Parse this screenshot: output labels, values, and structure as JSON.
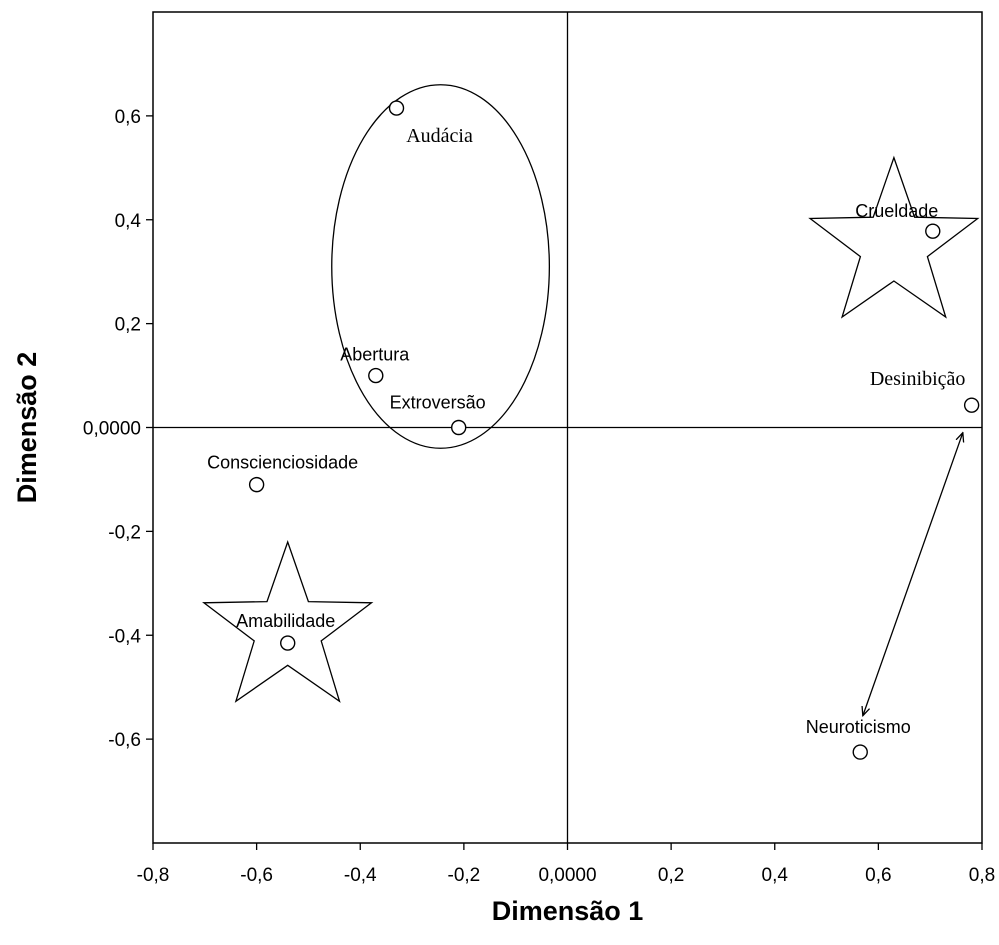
{
  "chart_data": {
    "type": "scatter",
    "xlabel": "Dimensão 1",
    "ylabel": "Dimensão 2",
    "xlim": [
      -0.8,
      0.8
    ],
    "ylim": [
      -0.8,
      0.8
    ],
    "x_ticks": [
      {
        "value": -0.8,
        "label": "-0,8"
      },
      {
        "value": -0.6,
        "label": "-0,6"
      },
      {
        "value": -0.4,
        "label": "-0,4"
      },
      {
        "value": -0.2,
        "label": "-0,2"
      },
      {
        "value": 0.0,
        "label": "0,0000"
      },
      {
        "value": 0.2,
        "label": "0,2"
      },
      {
        "value": 0.4,
        "label": "0,4"
      },
      {
        "value": 0.6,
        "label": "0,6"
      },
      {
        "value": 0.8,
        "label": "0,8"
      }
    ],
    "y_ticks": [
      {
        "value": 0.6,
        "label": "0,6"
      },
      {
        "value": 0.4,
        "label": "0,4"
      },
      {
        "value": 0.2,
        "label": "0,2"
      },
      {
        "value": 0.0,
        "label": "0,0000"
      },
      {
        "value": -0.2,
        "label": "-0,2"
      },
      {
        "value": -0.4,
        "label": "-0,4"
      },
      {
        "value": -0.6,
        "label": "-0,6"
      }
    ],
    "grid": false,
    "reference_lines": {
      "x": 0,
      "y": 0
    },
    "points": [
      {
        "id": "audacia",
        "label": "Audácia",
        "x": -0.33,
        "y": 0.615,
        "font": "serif"
      },
      {
        "id": "abertura",
        "label": "Abertura",
        "x": -0.37,
        "y": 0.1,
        "font": "sans"
      },
      {
        "id": "extroversao",
        "label": "Extroversão",
        "x": -0.21,
        "y": 0.0,
        "font": "sans"
      },
      {
        "id": "conscienciosidade",
        "label": "Conscienciosidade",
        "x": -0.6,
        "y": -0.11,
        "font": "sans"
      },
      {
        "id": "amabilidade",
        "label": "Amabilidade",
        "x": -0.54,
        "y": -0.415,
        "font": "sans"
      },
      {
        "id": "crueldade",
        "label": "Crueldade",
        "x": 0.705,
        "y": 0.378,
        "font": "sans"
      },
      {
        "id": "desinibicao",
        "label": "Desinibição",
        "x": 0.78,
        "y": 0.043,
        "font": "serif"
      },
      {
        "id": "neuroticismo",
        "label": "Neuroticismo",
        "x": 0.565,
        "y": -0.625,
        "font": "sans"
      }
    ],
    "annotations": {
      "ellipse": {
        "cx": -0.245,
        "cy": 0.31,
        "rx": 0.21,
        "ry": 0.35
      },
      "stars": [
        {
          "cx": 0.63,
          "cy": 0.35,
          "outer_r": 0.17
        },
        {
          "cx": -0.54,
          "cy": -0.39,
          "outer_r": 0.17
        }
      ],
      "double_arrow": {
        "from": [
          0.763,
          -0.01
        ],
        "to": [
          0.57,
          -0.555
        ]
      }
    }
  }
}
